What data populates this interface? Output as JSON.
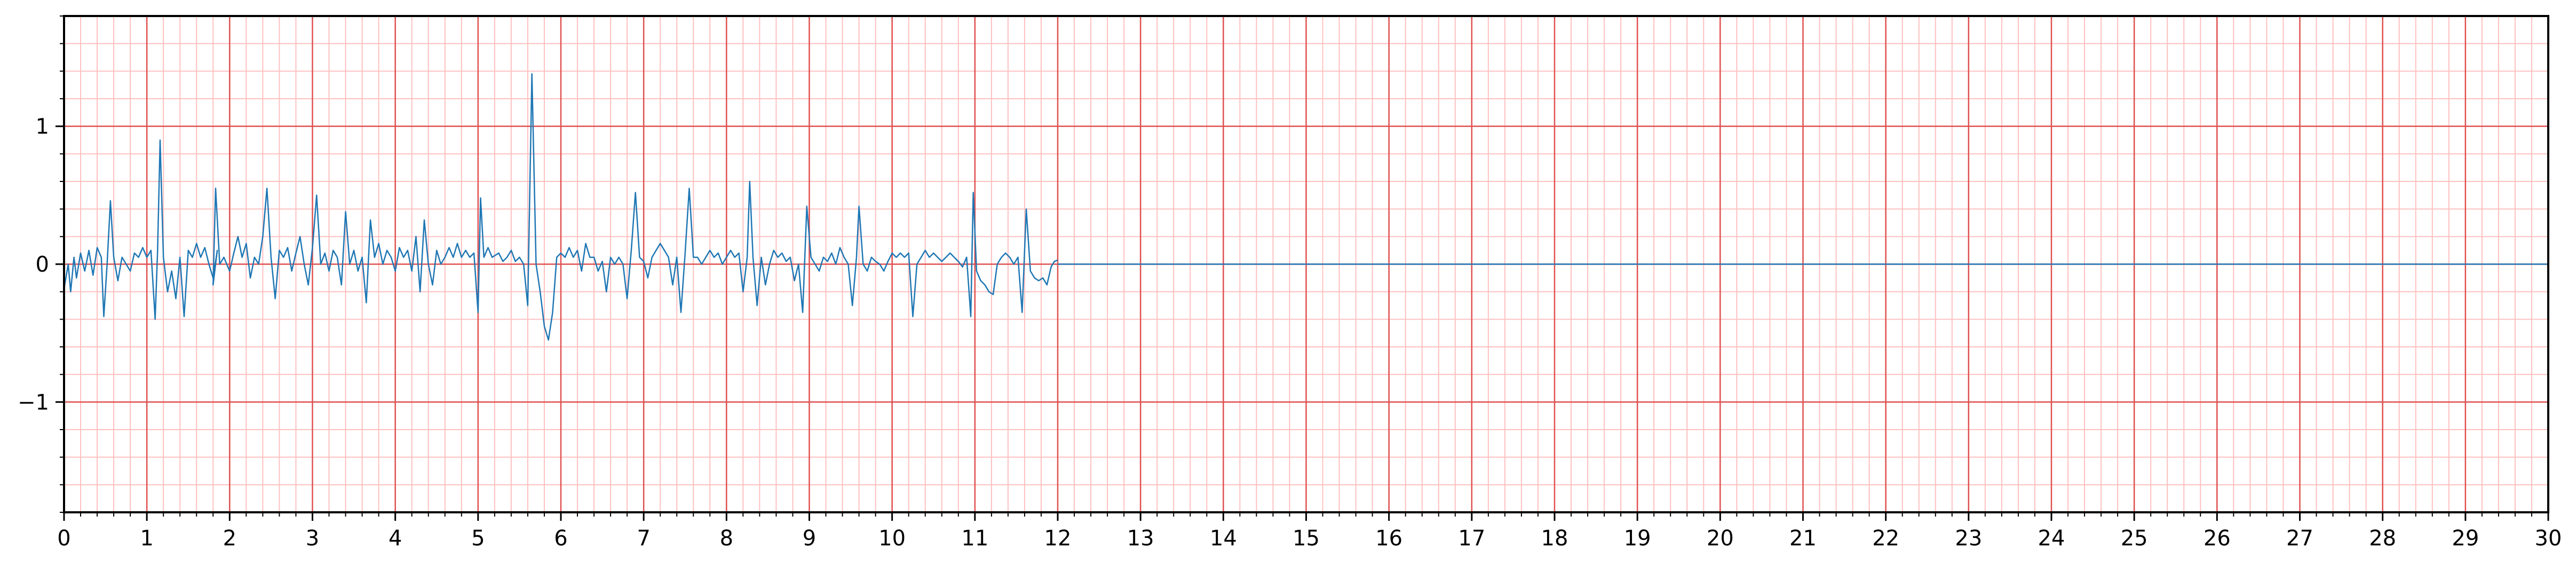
{
  "chart_data": {
    "type": "line",
    "title": "",
    "xlabel": "",
    "ylabel": "",
    "xlim": [
      0,
      30
    ],
    "ylim": [
      -1.8,
      1.8
    ],
    "x_ticks": [
      0,
      1,
      2,
      3,
      4,
      5,
      6,
      7,
      8,
      9,
      10,
      11,
      12,
      13,
      14,
      15,
      16,
      17,
      18,
      19,
      20,
      21,
      22,
      23,
      24,
      25,
      26,
      27,
      28,
      29,
      30
    ],
    "y_ticks": [
      -1,
      0,
      1
    ],
    "x_tick_labels": [
      "0",
      "1",
      "2",
      "3",
      "4",
      "5",
      "6",
      "7",
      "8",
      "9",
      "10",
      "11",
      "12",
      "13",
      "14",
      "15",
      "16",
      "17",
      "18",
      "19",
      "20",
      "21",
      "22",
      "23",
      "24",
      "25",
      "26",
      "27",
      "28",
      "29",
      "30"
    ],
    "y_tick_labels": [
      "−1",
      "0",
      "1"
    ],
    "grid": {
      "major": true,
      "minor": true,
      "major_color": "#e05050",
      "minor_color": "#ffc0c0",
      "minor_per_major_x": 5,
      "minor_per_major_y": 5
    },
    "line_color": "#1f77b4",
    "baseline": {
      "from": 12.0,
      "to": 30,
      "y": 0
    },
    "series": [
      {
        "points": [
          [
            0.0,
            -0.18
          ],
          [
            0.05,
            0.0
          ],
          [
            0.08,
            -0.2
          ],
          [
            0.12,
            0.05
          ],
          [
            0.15,
            -0.1
          ],
          [
            0.2,
            0.08
          ],
          [
            0.25,
            -0.05
          ],
          [
            0.3,
            0.1
          ],
          [
            0.35,
            -0.08
          ],
          [
            0.4,
            0.12
          ],
          [
            0.45,
            0.05
          ],
          [
            0.48,
            -0.38
          ],
          [
            0.52,
            0.0
          ],
          [
            0.56,
            0.46
          ],
          [
            0.6,
            0.05
          ],
          [
            0.65,
            -0.12
          ],
          [
            0.7,
            0.05
          ],
          [
            0.75,
            0.0
          ],
          [
            0.8,
            -0.05
          ],
          [
            0.85,
            0.08
          ],
          [
            0.9,
            0.05
          ],
          [
            0.95,
            0.12
          ],
          [
            1.0,
            0.05
          ],
          [
            1.05,
            0.1
          ],
          [
            1.1,
            -0.4
          ],
          [
            1.13,
            0.1
          ],
          [
            1.16,
            0.9
          ],
          [
            1.2,
            0.05
          ],
          [
            1.25,
            -0.2
          ],
          [
            1.3,
            -0.05
          ],
          [
            1.35,
            -0.25
          ],
          [
            1.4,
            0.05
          ],
          [
            1.45,
            -0.38
          ],
          [
            1.5,
            0.1
          ],
          [
            1.55,
            0.05
          ],
          [
            1.6,
            0.15
          ],
          [
            1.65,
            0.05
          ],
          [
            1.7,
            0.12
          ],
          [
            1.75,
            0.0
          ],
          [
            1.8,
            -0.1
          ],
          [
            1.85,
            0.1
          ],
          [
            1.8,
            -0.15
          ],
          [
            1.83,
            0.55
          ],
          [
            1.88,
            0.0
          ],
          [
            1.93,
            0.05
          ],
          [
            2.0,
            -0.05
          ],
          [
            2.05,
            0.08
          ],
          [
            2.1,
            0.2
          ],
          [
            2.15,
            0.05
          ],
          [
            2.2,
            0.15
          ],
          [
            2.25,
            -0.1
          ],
          [
            2.3,
            0.05
          ],
          [
            2.35,
            0.0
          ],
          [
            2.4,
            0.2
          ],
          [
            2.45,
            0.55
          ],
          [
            2.5,
            0.05
          ],
          [
            2.55,
            -0.25
          ],
          [
            2.6,
            0.1
          ],
          [
            2.65,
            0.05
          ],
          [
            2.7,
            0.12
          ],
          [
            2.75,
            -0.05
          ],
          [
            2.8,
            0.08
          ],
          [
            2.85,
            0.2
          ],
          [
            2.9,
            0.0
          ],
          [
            2.95,
            -0.15
          ],
          [
            3.0,
            0.12
          ],
          [
            3.05,
            0.5
          ],
          [
            3.1,
            0.0
          ],
          [
            3.15,
            0.08
          ],
          [
            3.2,
            -0.05
          ],
          [
            3.25,
            0.1
          ],
          [
            3.3,
            0.05
          ],
          [
            3.35,
            -0.15
          ],
          [
            3.4,
            0.38
          ],
          [
            3.45,
            0.0
          ],
          [
            3.5,
            0.1
          ],
          [
            3.55,
            -0.05
          ],
          [
            3.6,
            0.05
          ],
          [
            3.65,
            -0.28
          ],
          [
            3.7,
            0.32
          ],
          [
            3.75,
            0.05
          ],
          [
            3.8,
            0.15
          ],
          [
            3.85,
            0.0
          ],
          [
            3.9,
            0.1
          ],
          [
            3.95,
            0.05
          ],
          [
            4.0,
            -0.05
          ],
          [
            4.05,
            0.12
          ],
          [
            4.1,
            0.05
          ],
          [
            4.15,
            0.1
          ],
          [
            4.2,
            -0.05
          ],
          [
            4.25,
            0.2
          ],
          [
            4.3,
            -0.2
          ],
          [
            4.35,
            0.32
          ],
          [
            4.4,
            0.0
          ],
          [
            4.45,
            -0.15
          ],
          [
            4.5,
            0.1
          ],
          [
            4.55,
            0.0
          ],
          [
            4.6,
            0.05
          ],
          [
            4.65,
            0.12
          ],
          [
            4.7,
            0.05
          ],
          [
            4.75,
            0.15
          ],
          [
            4.8,
            0.05
          ],
          [
            4.85,
            0.1
          ],
          [
            4.9,
            0.05
          ],
          [
            4.95,
            0.08
          ],
          [
            5.0,
            -0.35
          ],
          [
            5.03,
            0.48
          ],
          [
            5.07,
            0.05
          ],
          [
            5.12,
            0.12
          ],
          [
            5.17,
            0.05
          ],
          [
            5.25,
            0.08
          ],
          [
            5.3,
            0.02
          ],
          [
            5.35,
            0.05
          ],
          [
            5.4,
            0.1
          ],
          [
            5.45,
            0.02
          ],
          [
            5.5,
            0.05
          ],
          [
            5.55,
            0.0
          ],
          [
            5.6,
            -0.3
          ],
          [
            5.65,
            1.38
          ],
          [
            5.7,
            0.0
          ],
          [
            5.75,
            -0.2
          ],
          [
            5.8,
            -0.45
          ],
          [
            5.85,
            -0.55
          ],
          [
            5.9,
            -0.35
          ],
          [
            5.95,
            0.05
          ],
          [
            6.0,
            0.08
          ],
          [
            6.05,
            0.05
          ],
          [
            6.1,
            0.12
          ],
          [
            6.15,
            0.05
          ],
          [
            6.2,
            0.1
          ],
          [
            6.25,
            -0.05
          ],
          [
            6.3,
            0.15
          ],
          [
            6.35,
            0.05
          ],
          [
            6.4,
            0.05
          ],
          [
            6.45,
            -0.05
          ],
          [
            6.5,
            0.02
          ],
          [
            6.55,
            -0.2
          ],
          [
            6.6,
            0.05
          ],
          [
            6.65,
            0.0
          ],
          [
            6.7,
            0.05
          ],
          [
            6.75,
            0.0
          ],
          [
            6.8,
            -0.25
          ],
          [
            6.85,
            0.1
          ],
          [
            6.9,
            0.52
          ],
          [
            6.95,
            0.05
          ],
          [
            7.0,
            0.02
          ],
          [
            7.05,
            -0.1
          ],
          [
            7.1,
            0.05
          ],
          [
            7.15,
            0.1
          ],
          [
            7.2,
            0.15
          ],
          [
            7.25,
            0.1
          ],
          [
            7.3,
            0.05
          ],
          [
            7.35,
            -0.15
          ],
          [
            7.4,
            0.05
          ],
          [
            7.45,
            -0.35
          ],
          [
            7.5,
            0.08
          ],
          [
            7.55,
            0.55
          ],
          [
            7.6,
            0.05
          ],
          [
            7.65,
            0.05
          ],
          [
            7.7,
            0.0
          ],
          [
            7.75,
            0.05
          ],
          [
            7.8,
            0.1
          ],
          [
            7.85,
            0.05
          ],
          [
            7.9,
            0.08
          ],
          [
            7.95,
            0.0
          ],
          [
            8.0,
            0.05
          ],
          [
            8.05,
            0.1
          ],
          [
            8.1,
            0.05
          ],
          [
            8.15,
            0.08
          ],
          [
            8.2,
            -0.2
          ],
          [
            8.25,
            0.05
          ],
          [
            8.28,
            0.6
          ],
          [
            8.32,
            0.05
          ],
          [
            8.37,
            -0.3
          ],
          [
            8.42,
            0.05
          ],
          [
            8.47,
            -0.15
          ],
          [
            8.52,
            0.0
          ],
          [
            8.57,
            0.1
          ],
          [
            8.62,
            0.05
          ],
          [
            8.67,
            0.08
          ],
          [
            8.72,
            0.02
          ],
          [
            8.77,
            0.05
          ],
          [
            8.82,
            -0.12
          ],
          [
            8.87,
            0.0
          ],
          [
            8.92,
            -0.35
          ],
          [
            8.97,
            0.42
          ],
          [
            9.02,
            0.05
          ],
          [
            9.07,
            0.0
          ],
          [
            9.12,
            -0.05
          ],
          [
            9.17,
            0.05
          ],
          [
            9.22,
            0.02
          ],
          [
            9.27,
            0.08
          ],
          [
            9.32,
            0.0
          ],
          [
            9.37,
            0.12
          ],
          [
            9.42,
            0.05
          ],
          [
            9.47,
            0.0
          ],
          [
            9.52,
            -0.3
          ],
          [
            9.57,
            0.05
          ],
          [
            9.6,
            0.42
          ],
          [
            9.65,
            0.0
          ],
          [
            9.7,
            -0.05
          ],
          [
            9.75,
            0.05
          ],
          [
            9.8,
            0.02
          ],
          [
            9.85,
            0.0
          ],
          [
            9.9,
            -0.05
          ],
          [
            9.95,
            0.02
          ],
          [
            10.0,
            0.08
          ],
          [
            10.05,
            0.05
          ],
          [
            10.1,
            0.08
          ],
          [
            10.15,
            0.05
          ],
          [
            10.2,
            0.08
          ],
          [
            10.25,
            -0.38
          ],
          [
            10.3,
            0.0
          ],
          [
            10.35,
            0.05
          ],
          [
            10.4,
            0.1
          ],
          [
            10.45,
            0.05
          ],
          [
            10.5,
            0.08
          ],
          [
            10.55,
            0.05
          ],
          [
            10.6,
            0.02
          ],
          [
            10.65,
            0.05
          ],
          [
            10.7,
            0.08
          ],
          [
            10.75,
            0.05
          ],
          [
            10.8,
            0.02
          ],
          [
            10.85,
            -0.02
          ],
          [
            10.9,
            0.05
          ],
          [
            10.95,
            -0.38
          ],
          [
            10.98,
            0.52
          ],
          [
            11.02,
            -0.05
          ],
          [
            11.07,
            -0.12
          ],
          [
            11.12,
            -0.15
          ],
          [
            11.17,
            -0.2
          ],
          [
            11.22,
            -0.22
          ],
          [
            11.27,
            0.0
          ],
          [
            11.32,
            0.05
          ],
          [
            11.37,
            0.08
          ],
          [
            11.42,
            0.05
          ],
          [
            11.47,
            0.0
          ],
          [
            11.52,
            0.05
          ],
          [
            11.57,
            -0.35
          ],
          [
            11.62,
            0.4
          ],
          [
            11.67,
            -0.05
          ],
          [
            11.72,
            -0.1
          ],
          [
            11.77,
            -0.12
          ],
          [
            11.82,
            -0.1
          ],
          [
            11.87,
            -0.15
          ],
          [
            11.92,
            -0.02
          ],
          [
            11.96,
            0.02
          ],
          [
            12.0,
            0.03
          ]
        ]
      }
    ]
  }
}
